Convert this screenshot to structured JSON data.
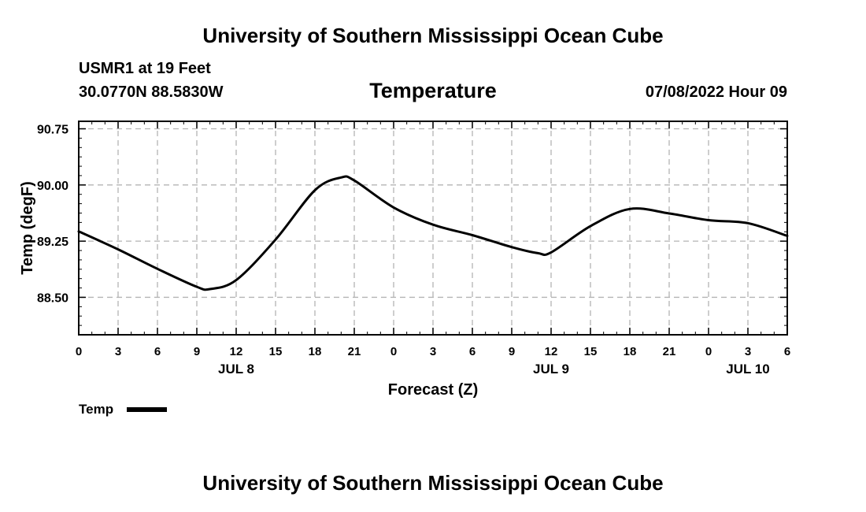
{
  "header": {
    "title": "University of Southern Mississippi Ocean Cube",
    "station": "USMR1 at 19 Feet",
    "coords": "30.0770N  88.5830W",
    "variable": "Temperature",
    "datestamp": "07/08/2022 Hour 09"
  },
  "footer": {
    "title": "University of Southern Mississippi Ocean Cube"
  },
  "chart_data": {
    "type": "line",
    "title": "Temperature",
    "xlabel": "Forecast (Z)",
    "ylabel": "Temp (degF)",
    "xlim": [
      0,
      54
    ],
    "ylim": [
      88.0,
      90.85
    ],
    "x_ticks": [
      0,
      3,
      6,
      9,
      12,
      15,
      18,
      21,
      24,
      27,
      30,
      33,
      36,
      39,
      42,
      45,
      48,
      51,
      54
    ],
    "x_tick_labels": [
      "0",
      "3",
      "6",
      "9",
      "12",
      "15",
      "18",
      "21",
      "0",
      "3",
      "6",
      "9",
      "12",
      "15",
      "18",
      "21",
      "0",
      "3",
      "6"
    ],
    "day_labels": [
      {
        "x": 12,
        "label": "JUL 8"
      },
      {
        "x": 36,
        "label": "JUL 9"
      },
      {
        "x": 51,
        "label": "JUL 10"
      }
    ],
    "y_ticks": [
      88.5,
      89.25,
      90.0,
      90.75
    ],
    "y_tick_labels": [
      "88.50",
      "89.25",
      "90.00",
      "90.75"
    ],
    "grid": true,
    "legend": "bottom-left",
    "series": [
      {
        "name": "Temp",
        "color": "#000000",
        "x": [
          0,
          3,
          6,
          9,
          10,
          12,
          15,
          18,
          20,
          21,
          24,
          27,
          30,
          33,
          35,
          36,
          39,
          42,
          45,
          48,
          51,
          54
        ],
        "y": [
          89.38,
          89.14,
          88.88,
          88.64,
          88.61,
          88.73,
          89.27,
          89.93,
          90.1,
          90.06,
          89.7,
          89.47,
          89.33,
          89.17,
          89.09,
          89.1,
          89.45,
          89.68,
          89.62,
          89.53,
          89.49,
          89.32
        ]
      }
    ]
  }
}
